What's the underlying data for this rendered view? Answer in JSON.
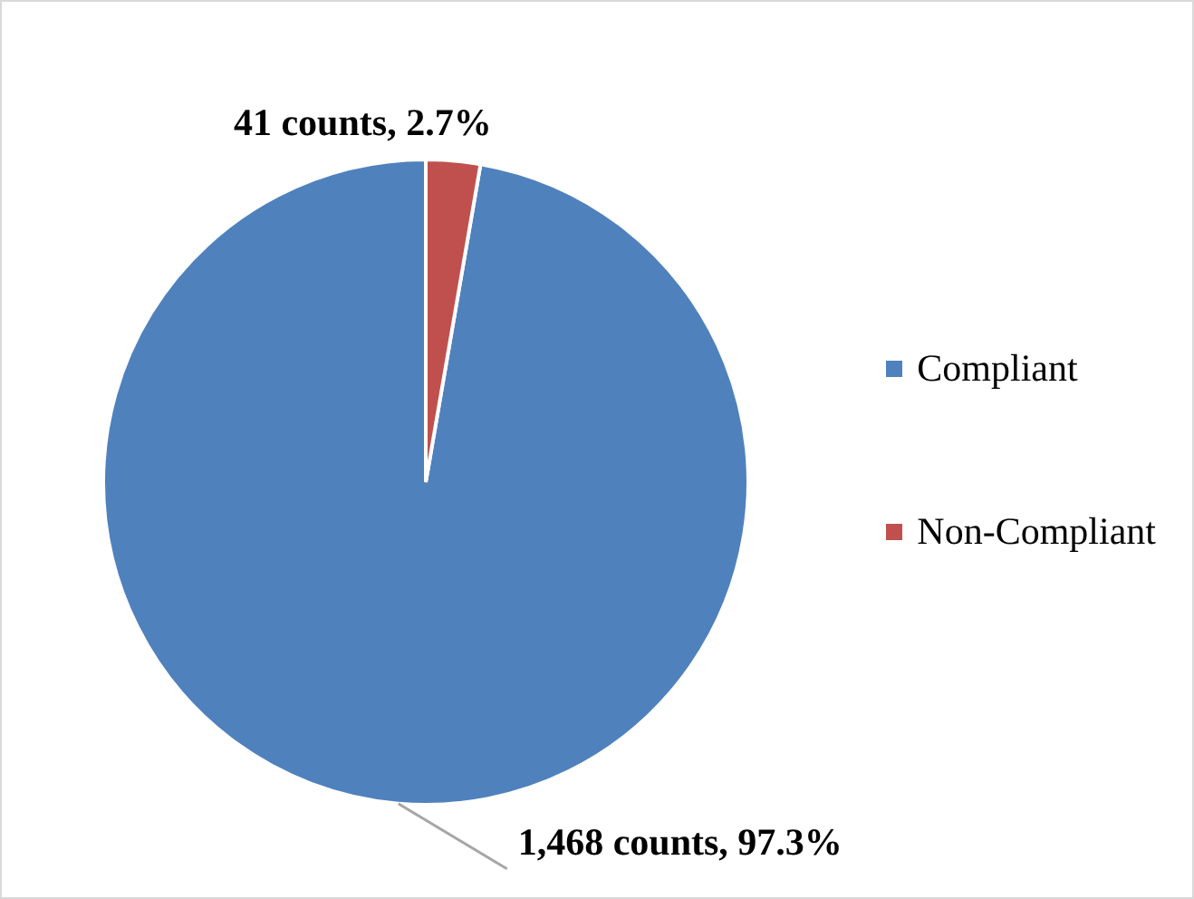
{
  "chart_data": {
    "type": "pie",
    "categories": [
      "Compliant",
      "Non-Compliant"
    ],
    "values": [
      1468,
      41
    ],
    "colors": [
      "#4f81bd",
      "#c0504d"
    ],
    "value_labels": [
      "1,468 counts, 97.3%",
      "41 counts, 2.7%"
    ],
    "legend": "right"
  }
}
